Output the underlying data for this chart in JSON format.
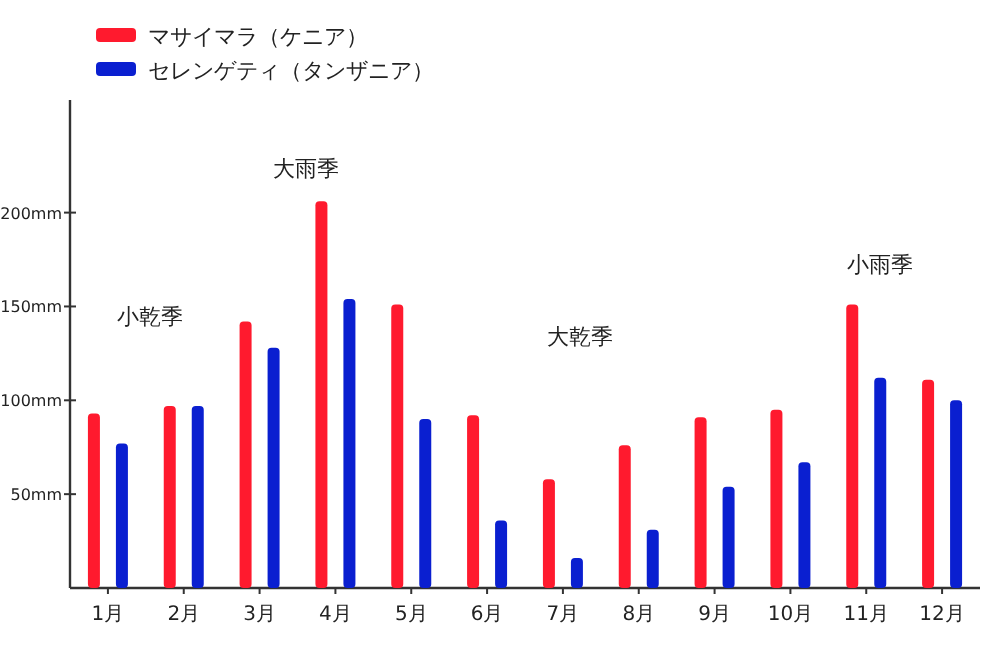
{
  "chart_data": {
    "type": "bar",
    "categories": [
      "1月",
      "2月",
      "3月",
      "4月",
      "5月",
      "6月",
      "7月",
      "8月",
      "9月",
      "10月",
      "11月",
      "12月"
    ],
    "series": [
      {
        "name": "マサイマラ（ケニア）",
        "color": "#ff1a2e",
        "values": [
          93,
          97,
          142,
          206,
          151,
          92,
          58,
          76,
          91,
          95,
          151,
          111
        ]
      },
      {
        "name": "セレンゲティ（タンザニア）",
        "color": "#0a1fd0",
        "values": [
          77,
          97,
          128,
          154,
          90,
          36,
          16,
          31,
          54,
          67,
          112,
          100
        ]
      }
    ],
    "ylim": [
      0,
      260
    ],
    "yticks": [
      {
        "value": 50,
        "label": "50mm"
      },
      {
        "value": 100,
        "label": "100mm"
      },
      {
        "value": 150,
        "label": "150mm"
      },
      {
        "value": 200,
        "label": "200mm"
      }
    ],
    "annotations": [
      "小乾季",
      "大雨季",
      "大乾季",
      "小雨季"
    ],
    "legend": "top left"
  }
}
